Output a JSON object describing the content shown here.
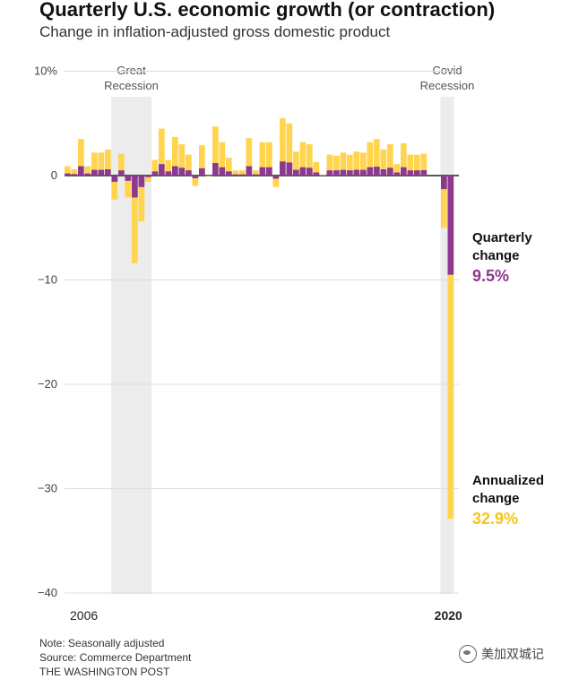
{
  "title": "Quarterly U.S. economic growth (or contraction)",
  "subtitle": "Change in inflation-adjusted gross domestic product",
  "footer": {
    "note": "Note: Seasonally adjusted",
    "source": "Source: Commerce Department",
    "credit": "THE WASHINGTON POST"
  },
  "watermark": "美加双城记",
  "chart_data": {
    "type": "bar",
    "title": "Quarterly U.S. economic growth (or contraction)",
    "subtitle": "Change in inflation-adjusted gross domestic product",
    "ylim": [
      -40,
      10
    ],
    "yticks": [
      {
        "value": 10,
        "label": "10%"
      },
      {
        "value": 0,
        "label": "0"
      },
      {
        "value": -10,
        "label": "−10"
      },
      {
        "value": -20,
        "label": "−20"
      },
      {
        "value": -30,
        "label": "−30"
      },
      {
        "value": -40,
        "label": "−40"
      }
    ],
    "xtick_labels": [
      {
        "label": "2006",
        "quarter_index": 0,
        "bold": false
      },
      {
        "label": "2020",
        "quarter_index": 57,
        "bold": true
      }
    ],
    "grid": true,
    "period": "2006 Q1 – 2020 Q2",
    "series": [
      {
        "name": "Annualized change",
        "color": "#ffd54f",
        "values": [
          0.9,
          0.6,
          3.5,
          0.9,
          2.2,
          2.2,
          2.5,
          -2.3,
          2.1,
          -2.1,
          -8.4,
          -4.4,
          -0.6,
          1.5,
          4.5,
          1.5,
          3.7,
          3.0,
          2.0,
          -1.0,
          2.9,
          -0.1,
          4.7,
          3.2,
          1.7,
          0.5,
          0.5,
          3.6,
          0.5,
          3.2,
          3.2,
          -1.1,
          5.5,
          5.0,
          2.3,
          3.2,
          3.0,
          1.3,
          0.1,
          2.0,
          1.9,
          2.2,
          2.0,
          2.3,
          2.2,
          3.2,
          3.5,
          2.5,
          3.0,
          1.1,
          3.1,
          2.0,
          2.0,
          2.1,
          0.0,
          0.0,
          -5.0,
          -32.9
        ]
      },
      {
        "name": "Quarterly change",
        "color": "#8b3a8f",
        "values": [
          0.2,
          0.15,
          0.9,
          0.2,
          0.55,
          0.55,
          0.6,
          -0.6,
          0.5,
          -0.5,
          -2.1,
          -1.1,
          -0.15,
          0.4,
          1.1,
          0.4,
          0.9,
          0.75,
          0.5,
          -0.25,
          0.7,
          -0.03,
          1.2,
          0.8,
          0.4,
          0.12,
          0.12,
          0.9,
          0.12,
          0.8,
          0.8,
          -0.3,
          1.35,
          1.25,
          0.55,
          0.8,
          0.75,
          0.3,
          0.03,
          0.5,
          0.5,
          0.55,
          0.5,
          0.55,
          0.55,
          0.8,
          0.85,
          0.6,
          0.75,
          0.3,
          0.8,
          0.5,
          0.5,
          0.52,
          0.0,
          0.0,
          -1.3,
          -9.5
        ]
      }
    ],
    "shaded_periods": [
      {
        "label_lines": [
          "Great",
          "Recession"
        ],
        "start_index": 7,
        "end_index": 12
      },
      {
        "label_lines": [
          "Covid",
          "Recession"
        ],
        "start_index": 56,
        "end_index": 57
      }
    ],
    "annotations": [
      {
        "series": "Quarterly change",
        "label_lines": [
          "Quarterly",
          "change"
        ],
        "value_label": "9.5%",
        "color": "#8b3a8f"
      },
      {
        "series": "Annualized change",
        "label_lines": [
          "Annualized",
          "change"
        ],
        "value_label": "32.9%",
        "color": "#f5c518"
      }
    ]
  }
}
